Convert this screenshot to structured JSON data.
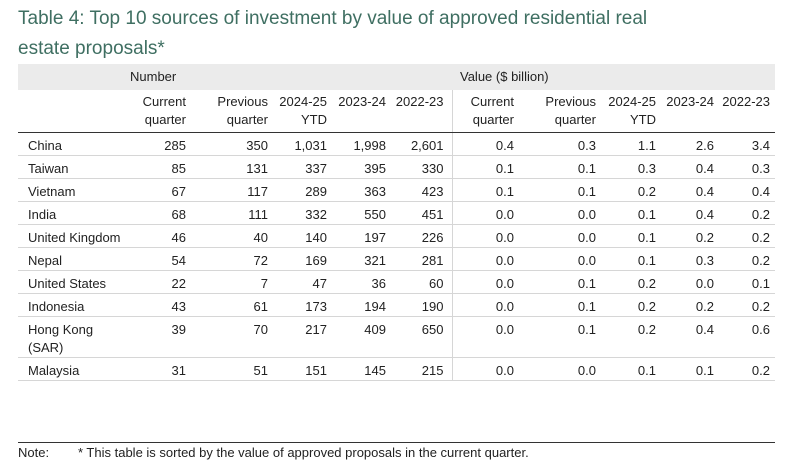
{
  "title": "Table 4: Top 10 sources of investment by value of approved residential real estate proposals*",
  "table": {
    "groups": [
      "Number",
      "Value ($ billion)"
    ],
    "columns": [
      "Current quarter",
      "Previous quarter",
      "2024-25 YTD",
      "2023-24",
      "2022-23"
    ],
    "rows": [
      {
        "country": "China",
        "number": [
          "285",
          "350",
          "1,031",
          "1,998",
          "2,601"
        ],
        "value": [
          "0.4",
          "0.3",
          "1.1",
          "2.6",
          "3.4"
        ]
      },
      {
        "country": "Taiwan",
        "number": [
          "85",
          "131",
          "337",
          "395",
          "330"
        ],
        "value": [
          "0.1",
          "0.1",
          "0.3",
          "0.4",
          "0.3"
        ]
      },
      {
        "country": "Vietnam",
        "number": [
          "67",
          "117",
          "289",
          "363",
          "423"
        ],
        "value": [
          "0.1",
          "0.1",
          "0.2",
          "0.4",
          "0.4"
        ]
      },
      {
        "country": "India",
        "number": [
          "68",
          "111",
          "332",
          "550",
          "451"
        ],
        "value": [
          "0.0",
          "0.0",
          "0.1",
          "0.4",
          "0.2"
        ]
      },
      {
        "country": "United Kingdom",
        "number": [
          "46",
          "40",
          "140",
          "197",
          "226"
        ],
        "value": [
          "0.0",
          "0.0",
          "0.1",
          "0.2",
          "0.2"
        ]
      },
      {
        "country": "Nepal",
        "number": [
          "54",
          "72",
          "169",
          "321",
          "281"
        ],
        "value": [
          "0.0",
          "0.0",
          "0.1",
          "0.3",
          "0.2"
        ]
      },
      {
        "country": "United States",
        "number": [
          "22",
          "7",
          "47",
          "36",
          "60"
        ],
        "value": [
          "0.0",
          "0.1",
          "0.2",
          "0.0",
          "0.1"
        ]
      },
      {
        "country": "Indonesia",
        "number": [
          "43",
          "61",
          "173",
          "194",
          "190"
        ],
        "value": [
          "0.0",
          "0.1",
          "0.2",
          "0.2",
          "0.2"
        ]
      },
      {
        "country": "Hong Kong (SAR)",
        "number": [
          "39",
          "70",
          "217",
          "409",
          "650"
        ],
        "value": [
          "0.0",
          "0.1",
          "0.2",
          "0.4",
          "0.6"
        ]
      },
      {
        "country": "Malaysia",
        "number": [
          "31",
          "51",
          "151",
          "145",
          "215"
        ],
        "value": [
          "0.0",
          "0.0",
          "0.1",
          "0.1",
          "0.2"
        ]
      }
    ]
  },
  "note": {
    "label": "Note:",
    "text": "* This table is sorted by the value of approved proposals in the current quarter."
  }
}
